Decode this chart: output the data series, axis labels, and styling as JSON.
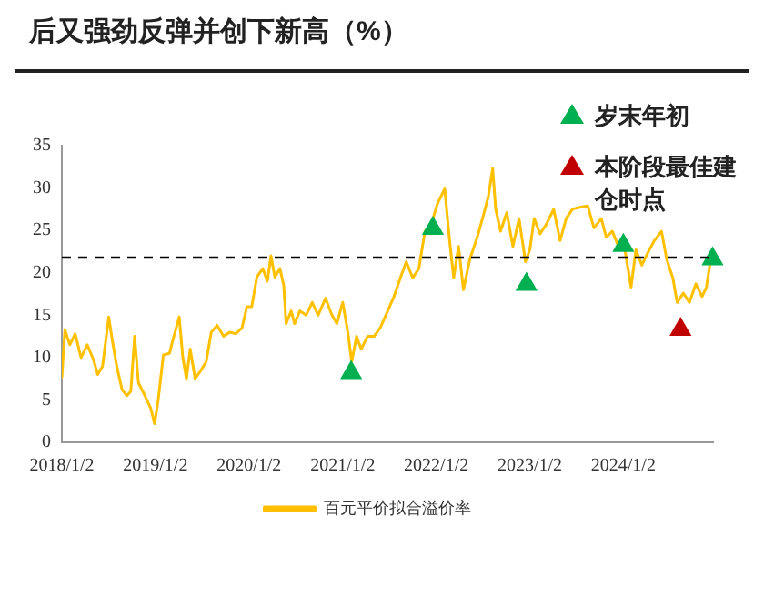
{
  "chart_data": {
    "type": "line",
    "title": "后又强劲反弹并创下新高（%）",
    "xlim": [
      "2018-01-02",
      "2024-12-17"
    ],
    "xticks": [
      {
        "value": "2018-01-02",
        "label": "2018/1/2"
      },
      {
        "value": "2019-01-02",
        "label": "2019/1/2"
      },
      {
        "value": "2020-01-02",
        "label": "2020/1/2"
      },
      {
        "value": "2021-01-02",
        "label": "2021/1/2"
      },
      {
        "value": "2022-01-02",
        "label": "2022/1/2"
      },
      {
        "value": "2023-01-02",
        "label": "2023/1/2"
      },
      {
        "value": "2024-01-02",
        "label": "2024/1/2"
      }
    ],
    "ylim": [
      0,
      35
    ],
    "yticks": [
      0,
      5,
      10,
      15,
      20,
      25,
      30,
      35
    ],
    "grid": false,
    "legend": "bottom",
    "ref_lines": [
      {
        "axis": "y",
        "value": 21.8,
        "color": "#000000",
        "line_style": "dashed"
      }
    ],
    "series": [
      {
        "name": "百元平价拟合溢价率",
        "color": "#ffc000",
        "marker": "none",
        "x": [
          "2018-01-02",
          "2018-01-14",
          "2018-02-02",
          "2018-02-23",
          "2018-03-18",
          "2018-04-11",
          "2018-05-05",
          "2018-05-22",
          "2018-06-10",
          "2018-07-04",
          "2018-07-18",
          "2018-08-04",
          "2018-08-25",
          "2018-09-13",
          "2018-09-28",
          "2018-10-13",
          "2018-10-28",
          "2018-11-22",
          "2018-12-15",
          "2018-12-30",
          "2019-01-13",
          "2019-02-02",
          "2019-02-26",
          "2019-03-15",
          "2019-04-05",
          "2019-04-19",
          "2019-05-03",
          "2019-05-18",
          "2019-06-06",
          "2019-06-29",
          "2019-07-19",
          "2019-08-08",
          "2019-08-31",
          "2019-09-25",
          "2019-10-19",
          "2019-11-12",
          "2019-12-06",
          "2019-12-25",
          "2020-01-13",
          "2020-02-02",
          "2020-02-25",
          "2020-03-14",
          "2020-03-28",
          "2020-04-12",
          "2020-05-02",
          "2020-05-17",
          "2020-05-26",
          "2020-06-15",
          "2020-06-28",
          "2020-07-19",
          "2020-08-12",
          "2020-09-05",
          "2020-09-28",
          "2020-10-27",
          "2020-11-21",
          "2020-12-10",
          "2021-01-02",
          "2021-01-22",
          "2021-02-06",
          "2021-02-25",
          "2021-03-15",
          "2021-04-09",
          "2021-05-04",
          "2021-05-28",
          "2021-06-15",
          "2021-07-21",
          "2021-08-15",
          "2021-09-07",
          "2021-10-02",
          "2021-10-26",
          "2021-11-19",
          "2021-12-13",
          "2022-01-07",
          "2022-02-04",
          "2022-02-23",
          "2022-03-11",
          "2022-03-30",
          "2022-04-18",
          "2022-05-13",
          "2022-06-11",
          "2022-07-05",
          "2022-07-24",
          "2022-08-10",
          "2022-08-22",
          "2022-09-10",
          "2022-10-04",
          "2022-10-28",
          "2022-11-21",
          "2022-12-16",
          "2023-01-02",
          "2023-01-19",
          "2023-02-11",
          "2023-03-07",
          "2023-04-05",
          "2023-04-30",
          "2023-05-24",
          "2023-06-17",
          "2023-07-11",
          "2023-08-16",
          "2023-09-09",
          "2023-10-08",
          "2023-10-27",
          "2023-11-20",
          "2023-12-14",
          "2024-01-08",
          "2024-02-01",
          "2024-02-20",
          "2024-03-14",
          "2024-04-07",
          "2024-05-02",
          "2024-05-30",
          "2024-06-19",
          "2024-07-13",
          "2024-07-30",
          "2024-08-23",
          "2024-09-16",
          "2024-10-11",
          "2024-11-04",
          "2024-11-21",
          "2024-12-10"
        ],
        "values": [
          7.7,
          13.3,
          11.5,
          12.8,
          10,
          11.5,
          9.8,
          8,
          9,
          14.8,
          12,
          9,
          6.2,
          5.5,
          6,
          12.5,
          7,
          5.5,
          4,
          2.2,
          5,
          10.3,
          10.5,
          12.5,
          14.8,
          10,
          7.5,
          11,
          7.5,
          8.5,
          9.5,
          13,
          13.8,
          12.5,
          13,
          12.8,
          13.5,
          16,
          16,
          19.5,
          20.5,
          19,
          22,
          19.5,
          20.5,
          18.5,
          14,
          15.5,
          14,
          15.5,
          15,
          16.5,
          15,
          17,
          15,
          14,
          16.5,
          13,
          9.5,
          12.5,
          11,
          12.5,
          12.5,
          13.5,
          14.7,
          17.2,
          19.4,
          21.3,
          19.4,
          20.5,
          24.9,
          25.7,
          28.2,
          29.9,
          23.8,
          19.4,
          23.1,
          18,
          21.6,
          24.2,
          26.8,
          29,
          32.3,
          27.5,
          24.9,
          27.1,
          23.1,
          26.4,
          21.3,
          22.7,
          26.4,
          24.6,
          25.7,
          27.5,
          23.8,
          26.4,
          27.5,
          27.7,
          27.9,
          25.3,
          26.4,
          24.2,
          24.9,
          23.1,
          22.7,
          18.3,
          22.7,
          20.9,
          22.4,
          23.8,
          24.9,
          21.6,
          19.4,
          16.5,
          17.6,
          16.5,
          18.7,
          17.2,
          18.3,
          22
        ]
      },
      {
        "name": "岁末年初",
        "type": "scatter",
        "color": "#00b050",
        "marker": "triangle",
        "x": [
          "2021-02-04",
          "2021-12-20",
          "2022-12-20",
          "2024-01-02",
          "2024-12-15"
        ],
        "values": [
          8.6,
          25.6,
          19,
          23.6,
          22
        ]
      },
      {
        "name": "本阶段最佳建仓时点",
        "type": "scatter",
        "color": "#c00000",
        "marker": "triangle",
        "x": [
          "2024-08-12"
        ],
        "values": [
          13.7
        ]
      }
    ]
  }
}
